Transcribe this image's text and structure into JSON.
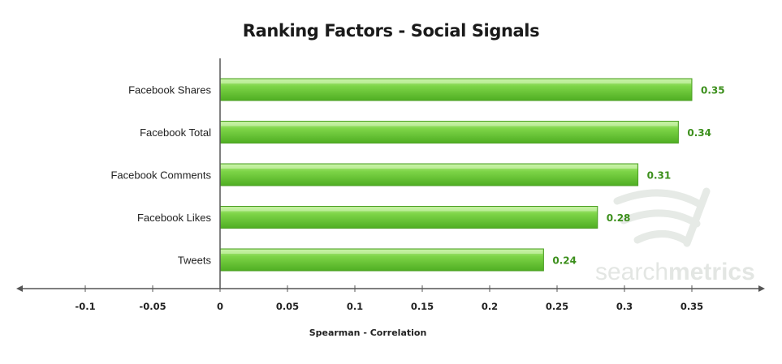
{
  "chart_data": {
    "type": "bar",
    "orientation": "horizontal",
    "title": "Ranking Factors - Social Signals",
    "xlabel": "Spearman - Correlation",
    "ylabel": "",
    "categories": [
      "Facebook Shares",
      "Facebook Total",
      "Facebook Comments",
      "Facebook Likes",
      "Tweets"
    ],
    "values": [
      0.35,
      0.34,
      0.31,
      0.28,
      0.24
    ],
    "value_labels": [
      "0.35",
      "0.34",
      "0.31",
      "0.28",
      "0.24"
    ],
    "xlim": [
      -0.15,
      0.4
    ],
    "xticks": [
      -0.1,
      -0.05,
      0,
      0.05,
      0.1,
      0.15,
      0.2,
      0.25,
      0.3,
      0.35
    ],
    "xtick_labels": [
      "-0.1",
      "-0.05",
      "0",
      "0.05",
      "0.1",
      "0.15",
      "0.2",
      "0.25",
      "0.3",
      "0.35"
    ],
    "grid": false,
    "legend": "none",
    "bar_color": "#6cc93a",
    "value_label_color": "#3c8f1c"
  },
  "watermark": {
    "brand_regular": "search",
    "brand_bold": "metrics"
  }
}
